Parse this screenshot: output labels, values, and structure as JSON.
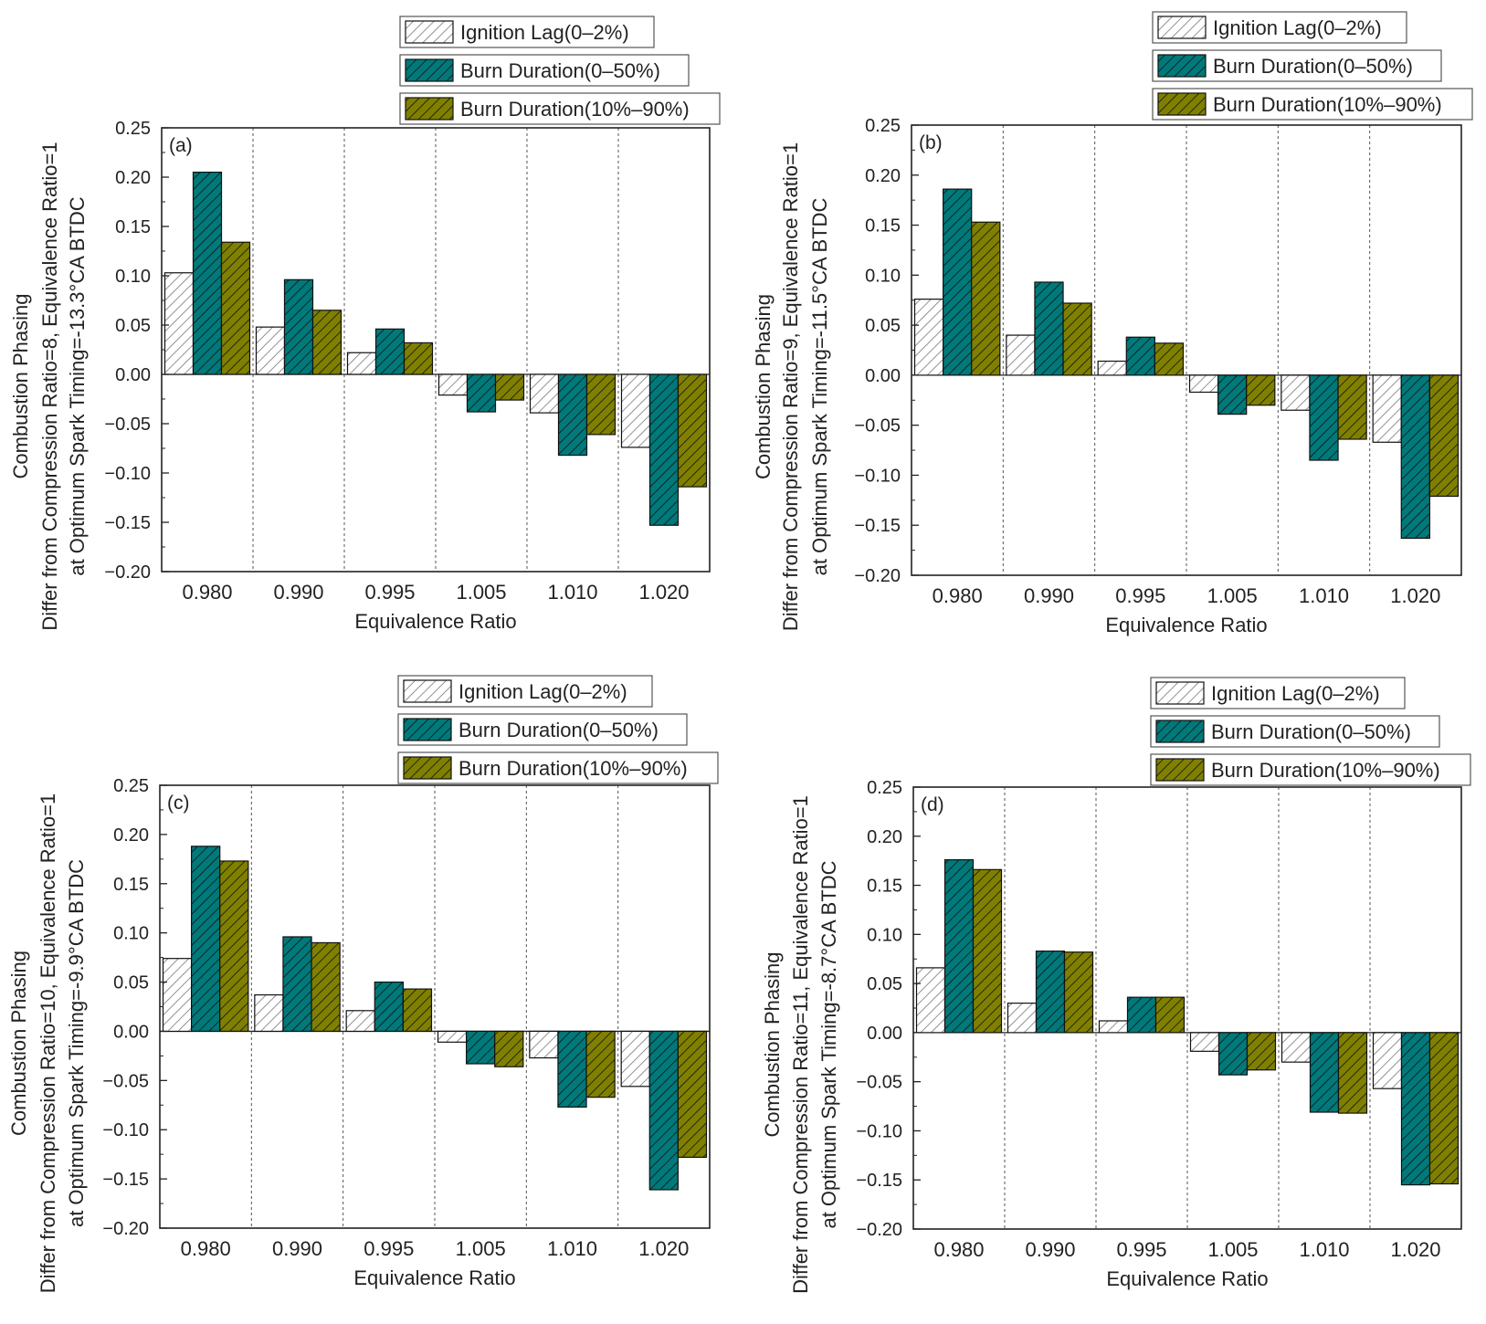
{
  "colors": {
    "ignition": "#ffffff",
    "burn_0_50": "#00797a",
    "burn_10_90": "#808000",
    "hatch_light": "#777777",
    "hatch_dark": "#111111",
    "axis": "#222222",
    "divider": "#555555"
  },
  "chart_data": [
    {
      "type": "bar",
      "panel_label": "(a)",
      "categories": [
        "0.980",
        "0.990",
        "0.995",
        "1.005",
        "1.010",
        "1.020"
      ],
      "series": [
        {
          "name": "Ignition Lag(0–2%)",
          "values": [
            0.103,
            0.048,
            0.022,
            -0.021,
            -0.039,
            -0.074
          ]
        },
        {
          "name": "Burn Duration(0–50%)",
          "values": [
            0.205,
            0.096,
            0.046,
            -0.038,
            -0.082,
            -0.153
          ]
        },
        {
          "name": "Burn Duration(10%–90%)",
          "values": [
            0.134,
            0.065,
            0.032,
            -0.026,
            -0.061,
            -0.114
          ]
        }
      ],
      "xlabel": "Equivalence Ratio",
      "ylabel_lines": [
        "Combustion Phasing",
        "Differ from Compression Ratio=8, Equivalence Ratio=1",
        "at Optimum Spark Timing=-13.3°CA BTDC"
      ],
      "ylim": [
        -0.2,
        0.25
      ],
      "yticks": [
        "−0.20",
        "−0.15",
        "−0.10",
        "−0.05",
        "0.00",
        "0.05",
        "0.10",
        "0.15",
        "0.20",
        "0.25"
      ],
      "legend": "top"
    },
    {
      "type": "bar",
      "panel_label": "(b)",
      "categories": [
        "0.980",
        "0.990",
        "0.995",
        "1.005",
        "1.010",
        "1.020"
      ],
      "series": [
        {
          "name": "Ignition Lag(0–2%)",
          "values": [
            0.076,
            0.04,
            0.014,
            -0.017,
            -0.035,
            -0.067
          ]
        },
        {
          "name": "Burn Duration(0–50%)",
          "values": [
            0.186,
            0.093,
            0.038,
            -0.039,
            -0.085,
            -0.163
          ]
        },
        {
          "name": "Burn Duration(10%–90%)",
          "values": [
            0.153,
            0.072,
            0.032,
            -0.03,
            -0.064,
            -0.121
          ]
        }
      ],
      "xlabel": "Equivalence Ratio",
      "ylabel_lines": [
        "Combustion Phasing",
        "Differ from Compression Ratio=9, Equivalence Ratio=1",
        "at Optimum Spark Timing=-11.5°CA BTDC"
      ],
      "ylim": [
        -0.2,
        0.25
      ],
      "yticks": [
        "−0.20",
        "−0.15",
        "−0.10",
        "−0.05",
        "0.00",
        "0.05",
        "0.10",
        "0.15",
        "0.20",
        "0.25"
      ],
      "legend": "top"
    },
    {
      "type": "bar",
      "panel_label": "(c)",
      "categories": [
        "0.980",
        "0.990",
        "0.995",
        "1.005",
        "1.010",
        "1.020"
      ],
      "series": [
        {
          "name": "Ignition Lag(0–2%)",
          "values": [
            0.074,
            0.037,
            0.021,
            -0.011,
            -0.027,
            -0.056
          ]
        },
        {
          "name": "Burn Duration(0–50%)",
          "values": [
            0.188,
            0.096,
            0.05,
            -0.033,
            -0.077,
            -0.161
          ]
        },
        {
          "name": "Burn Duration(10%–90%)",
          "values": [
            0.173,
            0.09,
            0.043,
            -0.036,
            -0.067,
            -0.128
          ]
        }
      ],
      "xlabel": "Equivalence Ratio",
      "ylabel_lines": [
        "Combustion Phasing",
        "Differ from Compression Ratio=10, Equivalence Ratio=1",
        "at Optimum Spark Timing=-9.9°CA BTDC"
      ],
      "ylim": [
        -0.2,
        0.25
      ],
      "yticks": [
        "−0.20",
        "−0.15",
        "−0.10",
        "−0.05",
        "0.00",
        "0.05",
        "0.10",
        "0.15",
        "0.20",
        "0.25"
      ],
      "legend": "top"
    },
    {
      "type": "bar",
      "panel_label": "(d)",
      "categories": [
        "0.980",
        "0.990",
        "0.995",
        "1.005",
        "1.010",
        "1.020"
      ],
      "series": [
        {
          "name": "Ignition Lag(0–2%)",
          "values": [
            0.066,
            0.03,
            0.012,
            -0.019,
            -0.03,
            -0.057
          ]
        },
        {
          "name": "Burn Duration(0–50%)",
          "values": [
            0.176,
            0.083,
            0.036,
            -0.043,
            -0.081,
            -0.155
          ]
        },
        {
          "name": "Burn Duration(10%–90%)",
          "values": [
            0.166,
            0.082,
            0.036,
            -0.038,
            -0.082,
            -0.154
          ]
        }
      ],
      "xlabel": "Equivalence Ratio",
      "ylabel_lines": [
        "Combustion Phasing",
        "Differ from Compression Ratio=11, Equivalence Ratio=1",
        "at Optimum Spark Timing=-8.7°CA BTDC"
      ],
      "ylim": [
        -0.2,
        0.25
      ],
      "yticks": [
        "−0.20",
        "−0.15",
        "−0.10",
        "−0.05",
        "0.00",
        "0.05",
        "0.10",
        "0.15",
        "0.20",
        "0.25"
      ],
      "legend": "top"
    }
  ]
}
